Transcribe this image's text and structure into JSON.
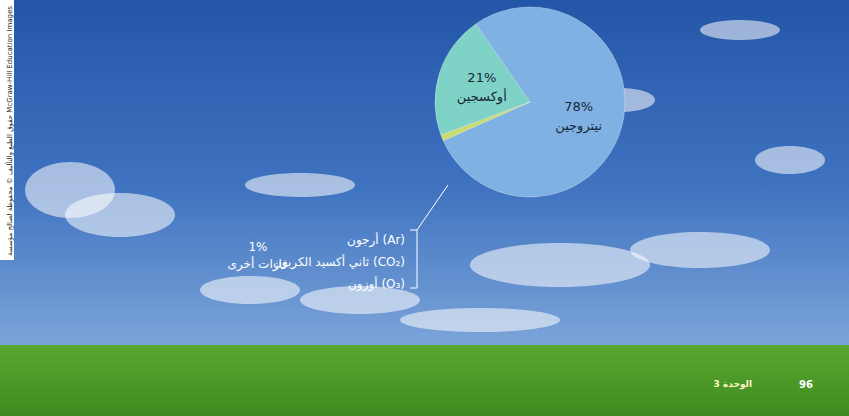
{
  "chart_data": {
    "type": "pie",
    "categories": [
      "نيتروجين",
      "أوكسجين",
      "غازات أخرى"
    ],
    "values": [
      78,
      21,
      1
    ],
    "value_labels": [
      "78%",
      "21%",
      "1%"
    ],
    "colors": [
      "#7fb1e2",
      "#7fd2c6",
      "#c9dd6e"
    ],
    "data_labels": true,
    "annotations": [
      "أرجون (Ar)",
      "ثاني أكسيد الكربون (CO₂)",
      "أوزون (O₃)"
    ],
    "footer": {
      "page": "96",
      "unit": "الوحدة 3"
    },
    "credit": "حقوق الطبع والتأليف © محفوظة لصالح مؤسسة McGraw-Hill Education Images"
  }
}
